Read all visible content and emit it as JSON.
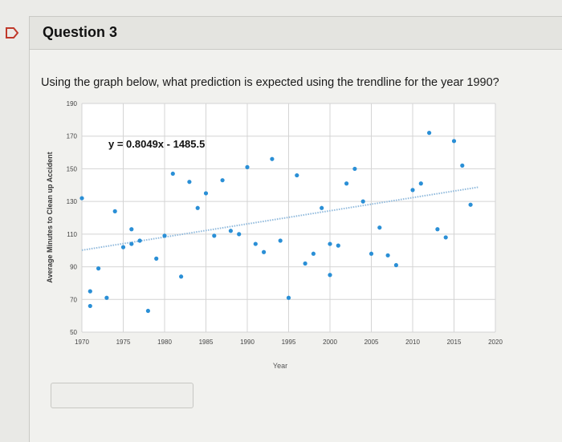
{
  "question": {
    "title": "Question 3",
    "prompt": "Using the graph below, what prediction is expected using the trendline for the year 1990?",
    "answer_value": ""
  },
  "chart_data": {
    "type": "scatter",
    "title": "",
    "xlabel": "Year",
    "ylabel": "Average Minutes to Clean up Accident",
    "equation": "y = 0.8049x - 1485.5",
    "xlim": [
      1970,
      2020
    ],
    "ylim": [
      50,
      190
    ],
    "x_ticks": [
      1970,
      1975,
      1980,
      1985,
      1990,
      1995,
      2000,
      2005,
      2010,
      2015,
      2020
    ],
    "y_ticks": [
      50,
      70,
      90,
      110,
      130,
      150,
      170,
      190
    ],
    "grid": true,
    "marker_color": "#2a8fd6",
    "trendline": {
      "slope": 0.8049,
      "intercept": -1485.5,
      "x_range": [
        1970,
        2018
      ],
      "color": "#8fb9dc",
      "style": "dotted"
    },
    "series": [
      {
        "points": [
          [
            1970,
            132
          ],
          [
            1971,
            75
          ],
          [
            1971,
            66
          ],
          [
            1972,
            89
          ],
          [
            1973,
            71
          ],
          [
            1974,
            124
          ],
          [
            1975,
            102
          ],
          [
            1976,
            113
          ],
          [
            1976,
            104
          ],
          [
            1977,
            106
          ],
          [
            1978,
            63
          ],
          [
            1979,
            95
          ],
          [
            1980,
            109
          ],
          [
            1981,
            147
          ],
          [
            1982,
            84
          ],
          [
            1983,
            142
          ],
          [
            1984,
            126
          ],
          [
            1985,
            135
          ],
          [
            1986,
            109
          ],
          [
            1987,
            143
          ],
          [
            1988,
            112
          ],
          [
            1989,
            110
          ],
          [
            1990,
            151
          ],
          [
            1991,
            104
          ],
          [
            1992,
            99
          ],
          [
            1993,
            156
          ],
          [
            1994,
            106
          ],
          [
            1995,
            71
          ],
          [
            1996,
            146
          ],
          [
            1997,
            92
          ],
          [
            1998,
            98
          ],
          [
            1999,
            126
          ],
          [
            2000,
            104
          ],
          [
            2000,
            85
          ],
          [
            2001,
            103
          ],
          [
            2002,
            141
          ],
          [
            2003,
            150
          ],
          [
            2004,
            130
          ],
          [
            2005,
            98
          ],
          [
            2006,
            114
          ],
          [
            2007,
            97
          ],
          [
            2008,
            91
          ],
          [
            2010,
            137
          ],
          [
            2011,
            141
          ],
          [
            2012,
            172
          ],
          [
            2013,
            113
          ],
          [
            2014,
            108
          ],
          [
            2015,
            167
          ],
          [
            2016,
            152
          ],
          [
            2017,
            128
          ]
        ]
      }
    ]
  },
  "colors": {
    "accent": "#2a8fd6",
    "flag": "#c0392b"
  }
}
